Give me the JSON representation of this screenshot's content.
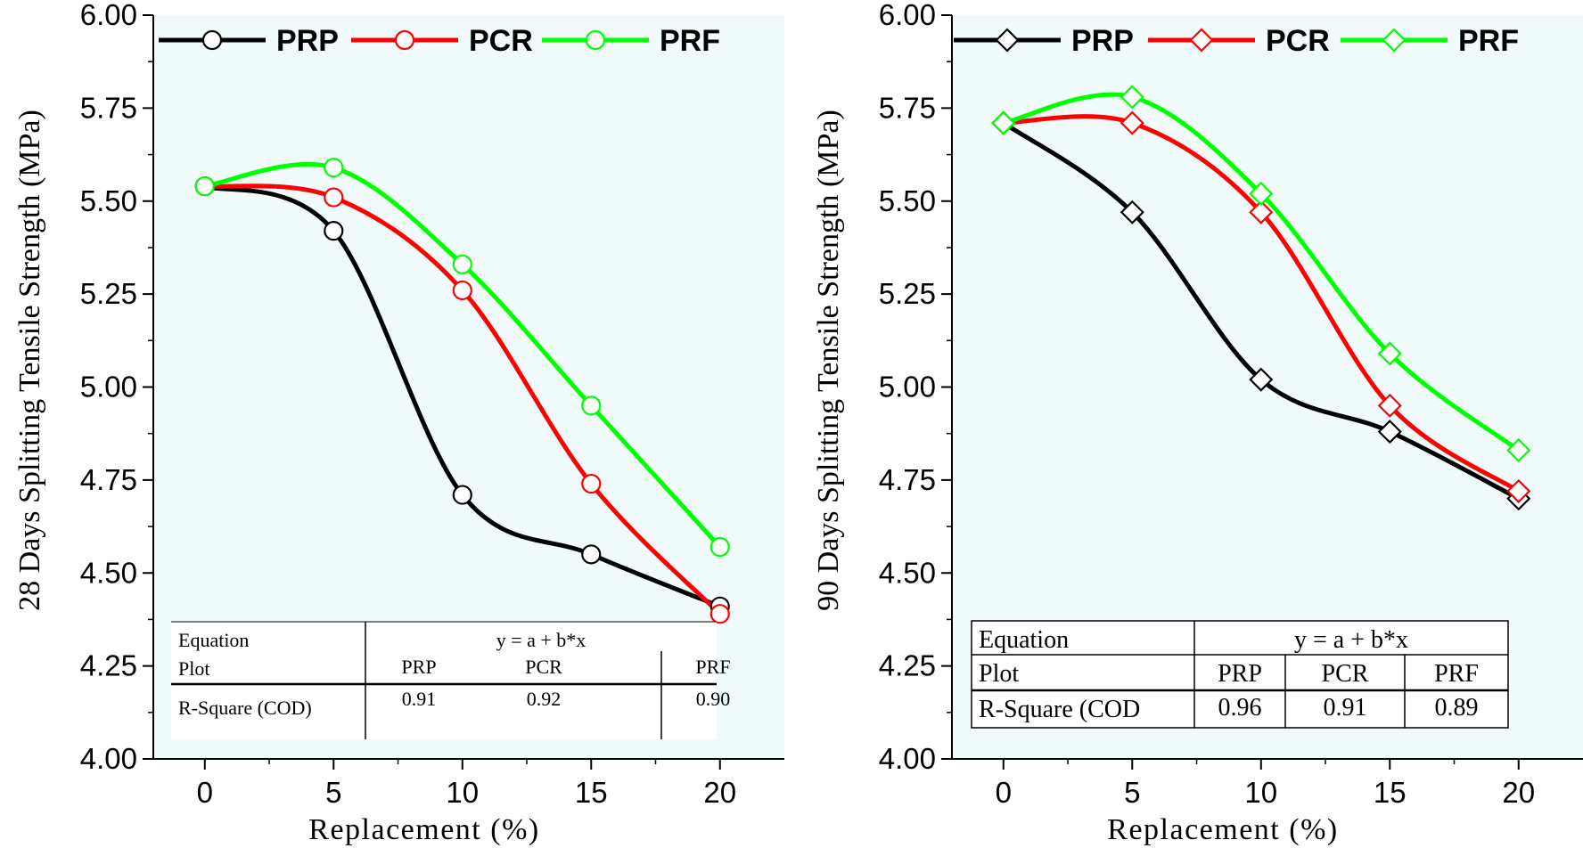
{
  "chart_data": [
    {
      "type": "line",
      "panel": "left",
      "title": "",
      "xlabel": "Replacement (%)",
      "ylabel": "28 Days Splitting Tensile Strength (MPa)",
      "xlim": [
        -2,
        22.5
      ],
      "ylim": [
        4.0,
        6.0
      ],
      "x": [
        0,
        5,
        10,
        15,
        20
      ],
      "xticks": [
        "0",
        "5",
        "10",
        "15",
        "20"
      ],
      "yticks": [
        "4.00",
        "4.25",
        "4.50",
        "4.75",
        "5.00",
        "5.25",
        "5.50",
        "5.75",
        "6.00"
      ],
      "marker": "circle",
      "legend_position": "top",
      "series": [
        {
          "name": "PRP",
          "color": "#000000",
          "values": [
            5.54,
            5.42,
            4.71,
            4.55,
            4.41
          ]
        },
        {
          "name": "PCR",
          "color": "#ff0000",
          "values": [
            5.54,
            5.51,
            5.26,
            4.74,
            4.39
          ]
        },
        {
          "name": "PRF",
          "color": "#00ff00",
          "values": [
            5.54,
            5.59,
            5.33,
            4.95,
            4.57
          ]
        }
      ],
      "table": {
        "equation_label": "Equation",
        "equation": "y = a + b*x",
        "plot_label": "Plot",
        "r2_label": "R-Square (COD)",
        "plots": [
          "PRP",
          "PCR",
          "PRF"
        ],
        "r2": [
          "0.91",
          "0.92",
          "0.90"
        ]
      }
    },
    {
      "type": "line",
      "panel": "right",
      "title": "",
      "xlabel": "Replacement (%)",
      "ylabel": "90 Days Splitting Tensile Strength (MPa)",
      "xlim": [
        -2,
        22.5
      ],
      "ylim": [
        4.0,
        6.0
      ],
      "x": [
        0,
        5,
        10,
        15,
        20
      ],
      "xticks": [
        "0",
        "5",
        "10",
        "15",
        "20"
      ],
      "yticks": [
        "4.00",
        "4.25",
        "4.50",
        "4.75",
        "5.00",
        "5.25",
        "5.50",
        "5.75",
        "6.00"
      ],
      "marker": "diamond",
      "legend_position": "top",
      "series": [
        {
          "name": "PRP",
          "color": "#000000",
          "values": [
            5.71,
            5.47,
            5.02,
            4.88,
            4.7
          ]
        },
        {
          "name": "PCR",
          "color": "#ff0000",
          "values": [
            5.71,
            5.71,
            5.47,
            4.95,
            4.72
          ]
        },
        {
          "name": "PRF",
          "color": "#00ff00",
          "values": [
            5.71,
            5.78,
            5.52,
            5.09,
            4.83
          ]
        }
      ],
      "table": {
        "equation_label": "Equation",
        "equation": "y = a + b*x",
        "plot_label": "Plot",
        "r2_label": "R-Square (COD",
        "plots": [
          "PRP",
          "PCR",
          "PRF"
        ],
        "r2": [
          "0.96",
          "0.91",
          "0.89"
        ]
      }
    }
  ]
}
